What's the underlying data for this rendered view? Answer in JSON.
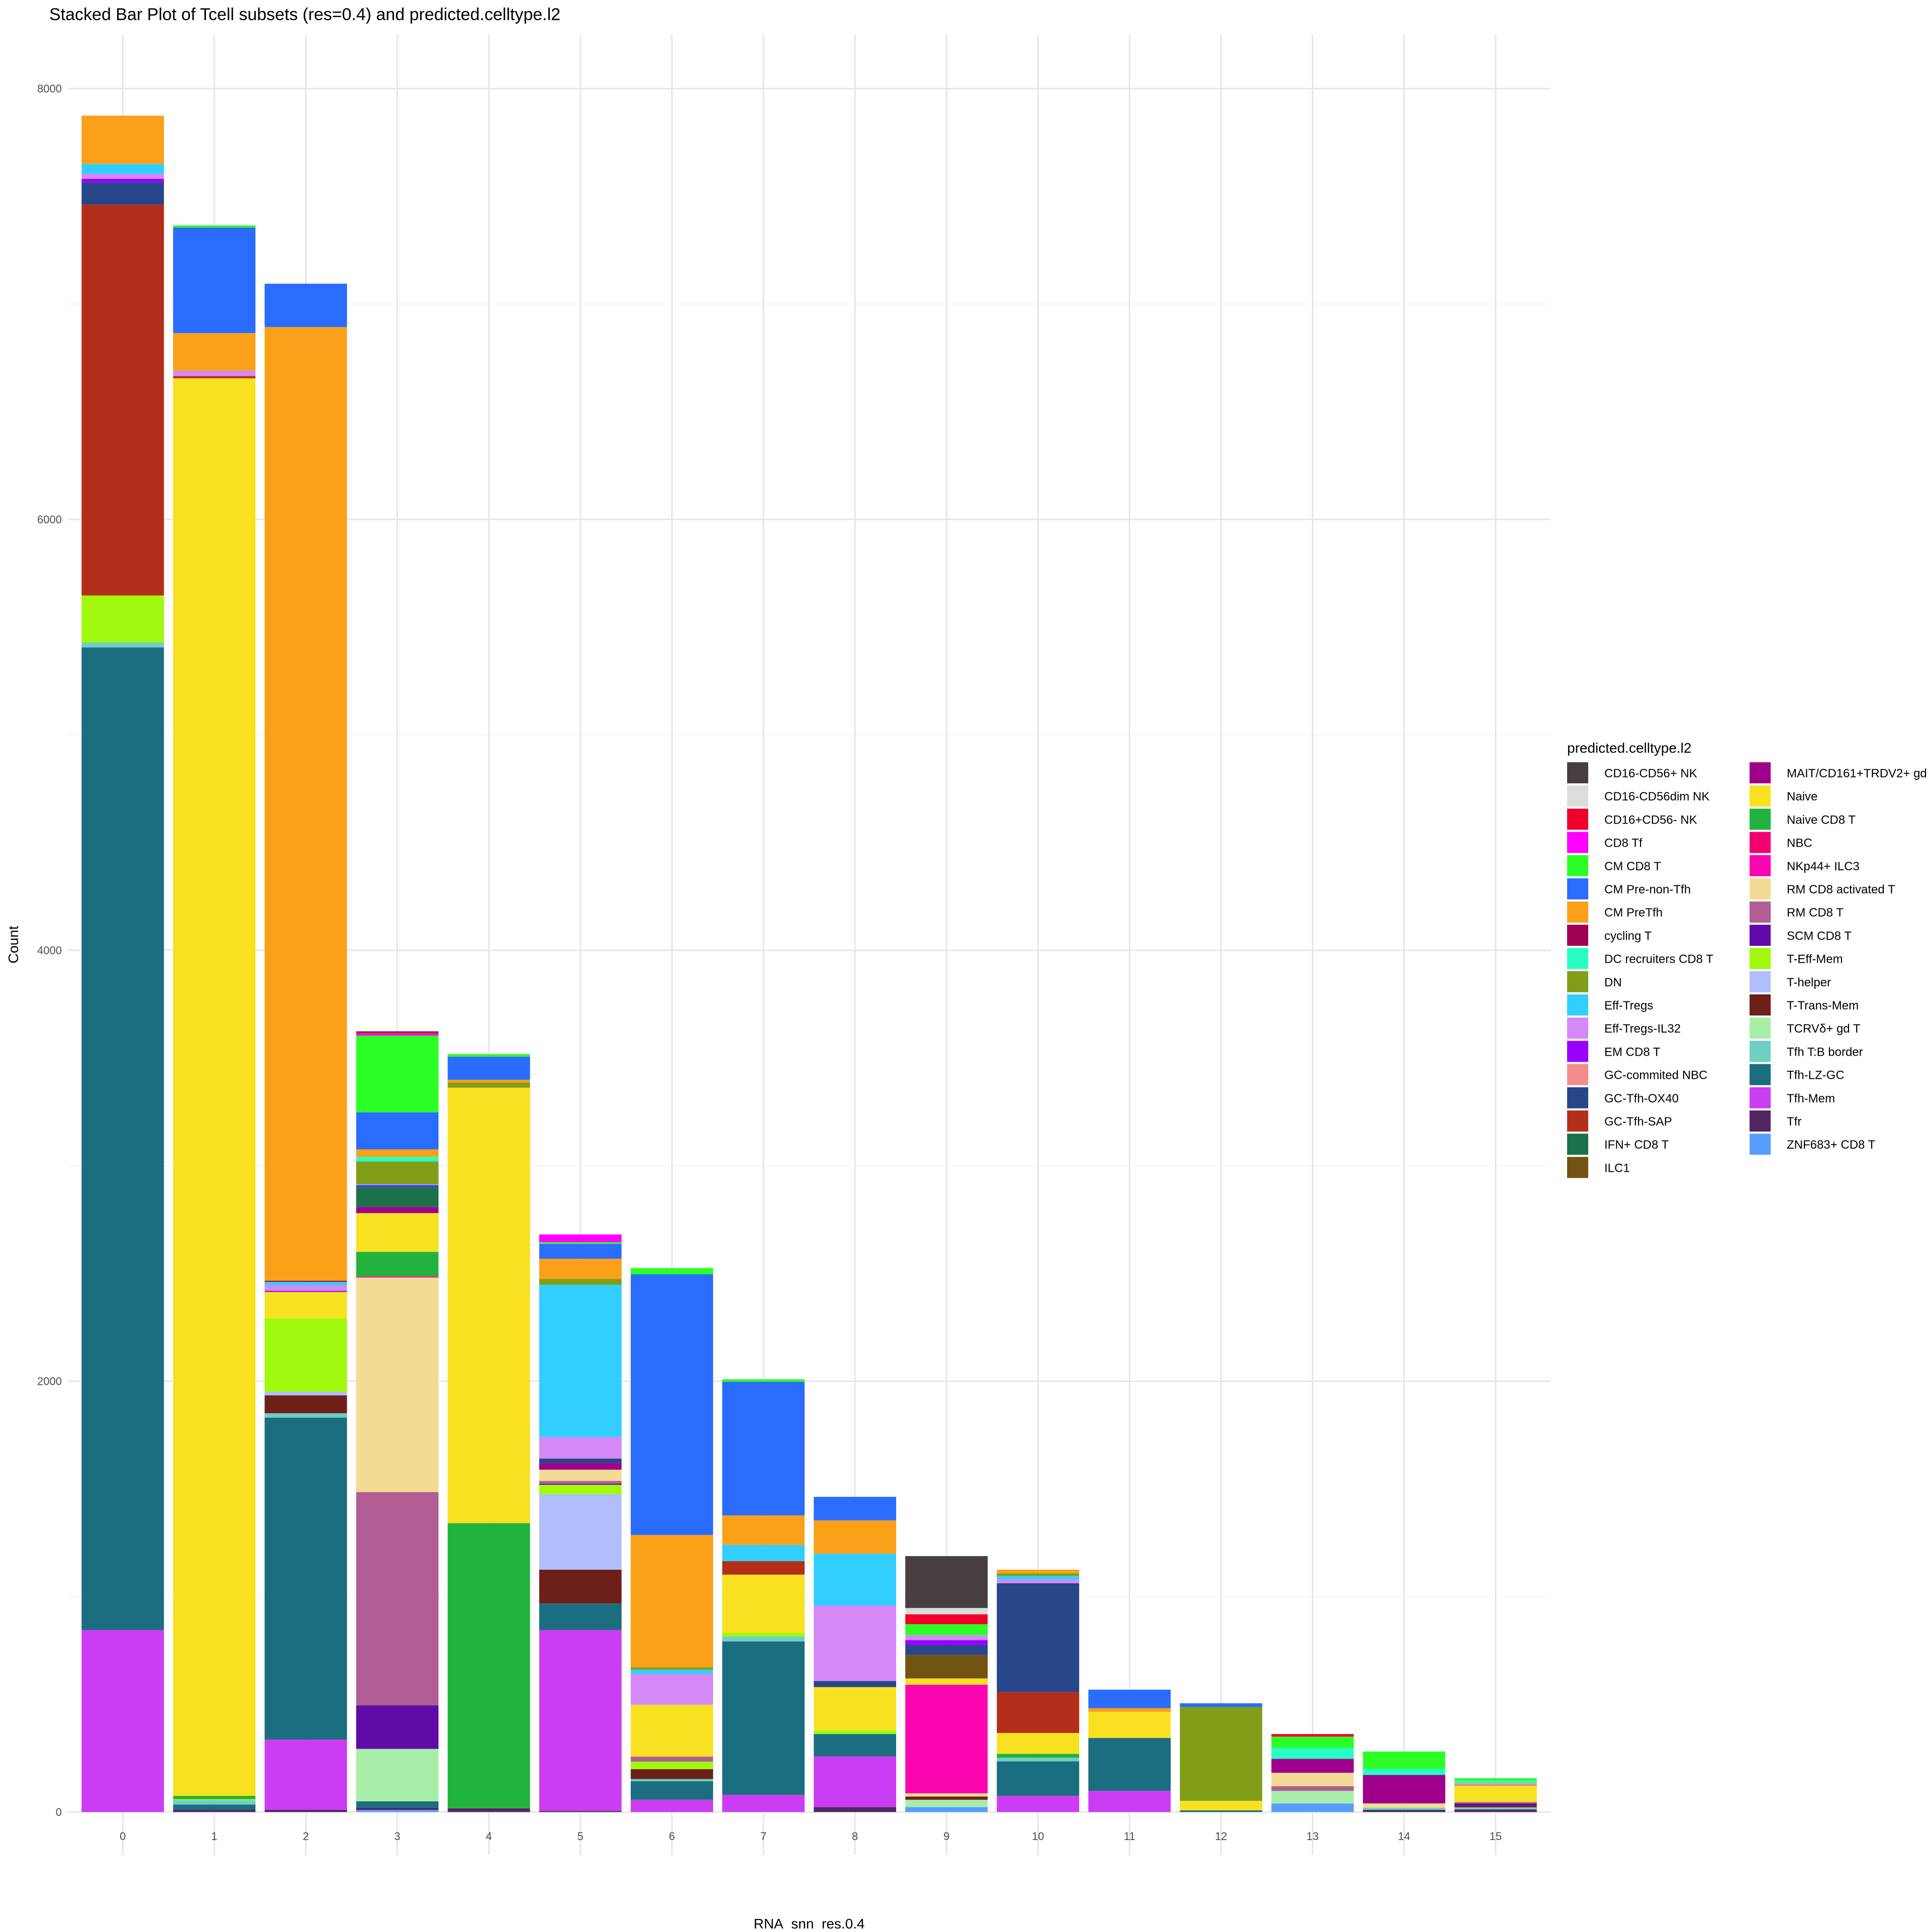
{
  "chart_data": {
    "type": "bar",
    "stacked": true,
    "title": "Stacked Bar Plot of Tcell subsets (res=0.4) and predicted.celltype.l2",
    "xlabel": "RNA_snn_res.0.4",
    "ylabel": "Count",
    "ylim": [
      -200,
      8250
    ],
    "yticks": [
      0,
      2000,
      4000,
      6000,
      8000
    ],
    "grid": true,
    "legend_title": "predicted.celltype.l2",
    "legend_position": "right",
    "legend": [
      {
        "name": "CD16-CD56+ NK",
        "color": "#473E42"
      },
      {
        "name": "CD16-CD56dim NK",
        "color": "#DCDCDC"
      },
      {
        "name": "CD16+CD56- NK",
        "color": "#F0002A"
      },
      {
        "name": "CD8 Tf",
        "color": "#FF00FF"
      },
      {
        "name": "CM CD8 T",
        "color": "#2BFF25"
      },
      {
        "name": "CM Pre-non-Tfh",
        "color": "#2A6CFF"
      },
      {
        "name": "CM PreTfh",
        "color": "#FAA019"
      },
      {
        "name": "cycling T",
        "color": "#9E0052"
      },
      {
        "name": "DC recruiters CD8 T",
        "color": "#29FFC2"
      },
      {
        "name": "DN",
        "color": "#829E19"
      },
      {
        "name": "Eff-Tregs",
        "color": "#31CFFF"
      },
      {
        "name": "Eff-Tregs-IL32",
        "color": "#D489F7"
      },
      {
        "name": "EM CD8 T",
        "color": "#9700FF"
      },
      {
        "name": "GC-commited NBC",
        "color": "#F28C8C"
      },
      {
        "name": "GC-Tfh-OX40",
        "color": "#274589"
      },
      {
        "name": "GC-Tfh-SAP",
        "color": "#B42F19"
      },
      {
        "name": "IFN+ CD8 T",
        "color": "#1B724A"
      },
      {
        "name": "ILC1",
        "color": "#735313"
      },
      {
        "name": "MAIT/CD161+TRDV2+ gd T-cells",
        "color": "#9E008B"
      },
      {
        "name": "Naive",
        "color": "#F8E120"
      },
      {
        "name": "Naive CD8 T",
        "color": "#21B33D"
      },
      {
        "name": "NBC",
        "color": "#F20070"
      },
      {
        "name": "NKp44+ ILC3",
        "color": "#FA05B0"
      },
      {
        "name": "RM CD8 activated T",
        "color": "#F4DB93"
      },
      {
        "name": "RM CD8 T",
        "color": "#B05E94"
      },
      {
        "name": "SCM CD8 T",
        "color": "#600BA8"
      },
      {
        "name": "T-Eff-Mem",
        "color": "#A0F90E"
      },
      {
        "name": "T-helper",
        "color": "#B0BEFD"
      },
      {
        "name": "T-Trans-Mem",
        "color": "#6D201A"
      },
      {
        "name": "TCRVδ+ gd T",
        "color": "#A8EEA8"
      },
      {
        "name": "Tfh T:B border",
        "color": "#6FCFC4"
      },
      {
        "name": "Tfh-LZ-GC",
        "color": "#1B6D80"
      },
      {
        "name": "Tfh-Mem",
        "color": "#CB3DF2"
      },
      {
        "name": "Tfr",
        "color": "#532663"
      },
      {
        "name": "ZNF683+ CD8 T",
        "color": "#579DFF"
      }
    ],
    "categories": [
      "0",
      "1",
      "2",
      "3",
      "4",
      "5",
      "6",
      "7",
      "8",
      "9",
      "10",
      "11",
      "12",
      "13",
      "14",
      "15"
    ],
    "series_counts": [
      {
        "Tfh-Mem": 845,
        "Tfh-LZ-GC": 4561,
        "Tfh T:B border": 23,
        "T-Eff-Mem": 218,
        "GC-Tfh-SAP": 1814,
        "GC-Tfh-OX40": 103,
        "EM CD8 T": 17,
        "Eff-Tregs-IL32": 23,
        "Eff-Tregs": 46,
        "CM PreTfh": 224
      },
      {
        "Tfr": 10,
        "Tfh-LZ-GC": 25,
        "Naive CD8 T": 15,
        "T-Eff-Mem": 5,
        "Naive": 6580,
        "GC-Tfh-SAP": 10,
        "Eff-Tregs-IL32": 25,
        "Tfh T:B border": 20,
        "CM PreTfh": 175,
        "CM Pre-non-Tfh": 490,
        "CM CD8 T": 10
      },
      {
        "Tfr": 10,
        "Tfh-Mem": 326,
        "Tfh-LZ-GC": 1495,
        "Tfh T:B border": 20,
        "T-Trans-Mem": 83,
        "T-helper": 17,
        "T-Eff-Mem": 340,
        "EM CD8 T": 5,
        "Naive": 123,
        "cycling T": 5,
        "Eff-Tregs-IL32": 27,
        "Eff-Tregs": 15,
        "CM PreTfh": 4427,
        "CM Pre-non-Tfh": 201
      },
      {
        "ZNF683+ CD8 T": 10,
        "Tfr": 10,
        "Tfh-LZ-GC": 30,
        "TCRVδ+ gd T": 243,
        "SCM CD8 T": 202,
        "RM CD8 T": 990,
        "RM CD8 activated T": 996,
        "NKp44+ ILC3": 5,
        "Naive CD8 T": 114,
        "Naive": 180,
        "MAIT/CD161+TRDV2+ gd T-cells": 28,
        "IFN+ CD8 T": 91,
        "GC-Tfh-OX40": 5,
        "EM CD8 T": 5,
        "Eff-Tregs": 5,
        "DN": 106,
        "DC recruiters CD8 T": 21,
        "CM PreTfh": 35,
        "CM Pre-non-Tfh": 172,
        "CM CD8 T": 356,
        "CD8 Tf": 10,
        "CD16+CD56- NK": 5,
        "CD16-CD56+ NK": 5
      },
      {
        "Tfr": 17,
        "Naive CD8 T": 1324,
        "Naive": 2021,
        "DN": 24,
        "CM PreTfh": 13,
        "CM Pre-non-Tfh": 107,
        "CM CD8 T": 12
      },
      {
        "Tfr": 5,
        "Tfh-Mem": 840,
        "Tfh-LZ-GC": 123,
        "T-Trans-Mem": 157,
        "T-helper": 350,
        "T-Eff-Mem": 44,
        "SCM CD8 T": 5,
        "RM CD8 T": 13,
        "RM CD8 activated T": 52,
        "MAIT/CD161+TRDV2+ gd T-cells": 31,
        "GC-Tfh-OX40": 21,
        "Eff-Tregs-IL32": 100,
        "Eff-Tregs": 706,
        "DN": 27,
        "CM PreTfh": 94,
        "CM Pre-non-Tfh": 69,
        "CM CD8 T": 8,
        "CD8 Tf": 36
      },
      {
        "Tfh-Mem": 57,
        "Tfh-LZ-GC": 86,
        "T-Trans-Mem": 46,
        "T-Eff-Mem": 35,
        "RM CD8 T": 23,
        "Naive": 241,
        "Eff-Tregs-IL32": 143,
        "Tfh T:B border": 10,
        "Eff-Tregs": 20,
        "DN": 10,
        "CM PreTfh": 615,
        "CM Pre-non-Tfh": 1210,
        "CM CD8 T": 29
      },
      {
        "Tfh-Mem": 80,
        "Tfh-LZ-GC": 712,
        "Tfh T:B border": 23,
        "T-Eff-Mem": 17,
        "Naive": 270,
        "GC-Tfh-SAP": 63,
        "Eff-Tregs": 75,
        "CM PreTfh": 137,
        "CM Pre-non-Tfh": 620,
        "CM CD8 T": 12
      },
      {
        "Tfr": 23,
        "Tfh-Mem": 235,
        "Tfh-LZ-GC": 104,
        "T-Eff-Mem": 17,
        "Naive": 201,
        "GC-Tfh-OX40": 28,
        "Eff-Tregs-IL32": 350,
        "Eff-Tregs": 241,
        "CM PreTfh": 155,
        "CM Pre-non-Tfh": 109
      },
      {
        "ZNF683+ CD8 T": 23,
        "TCRVδ+ gd T": 34,
        "T-Trans-Mem": 15,
        "RM CD8 activated T": 15,
        "NKp44+ ILC3": 504,
        "Naive": 29,
        "ILC1": 109,
        "Eff-Tregs-IL32": 23,
        "EM CD8 T": 23,
        "GC-Tfh-OX40": 46,
        "CM CD8 T": 51,
        "CD16+CD56- NK": 46,
        "CD16-CD56dim NK": 29,
        "CD16-CD56+ NK": 241
      },
      {
        "Tfh-Mem": 75,
        "Tfh-LZ-GC": 160,
        "Tfh T:B border": 17,
        "Naive CD8 T": 18,
        "Naive": 97,
        "GC-Tfh-SAP": 190,
        "GC-Tfh-OX40": 505,
        "Eff-Tregs-IL32": 17,
        "Eff-Tregs": 17,
        "DN": 12,
        "CM PreTfh": 17
      },
      {
        "Tfh-Mem": 98,
        "Tfh-LZ-GC": 246,
        "Naive": 121,
        "CM PreTfh": 17,
        "CM Pre-non-Tfh": 86
      },
      {
        "Tfh-LZ-GC": 8,
        "Naive": 44,
        "DN": 436,
        "CM Pre-non-Tfh": 17
      },
      {
        "ZNF683+ CD8 T": 40,
        "TCRVδ+ gd T": 58,
        "RM CD8 T": 22,
        "RM CD8 activated T": 62,
        "MAIT/CD161+TRDV2+ gd T-cells": 65,
        "DC recruiters CD8 T": 51,
        "CM CD8 T": 52,
        "CD16+CD56- NK": 12
      },
      {
        "Tfr": 10,
        "Tfh T:B border": 10,
        "RM CD8 activated T": 20,
        "MAIT/CD161+TRDV2+ gd T-cells": 132,
        "DC recruiters CD8 T": 29,
        "CM CD8 T": 80
      },
      {
        "Tfr": 12,
        "SCM CD8 T": 10,
        "RM CD8 T": 6,
        "GC-commited NBC": 12,
        "Naive": 75,
        "T-Trans-Mem": 8,
        "Tfh T:B border": 10,
        "DC recruiters CD8 T": 12,
        "CM CD8 T": 12
      }
    ]
  }
}
